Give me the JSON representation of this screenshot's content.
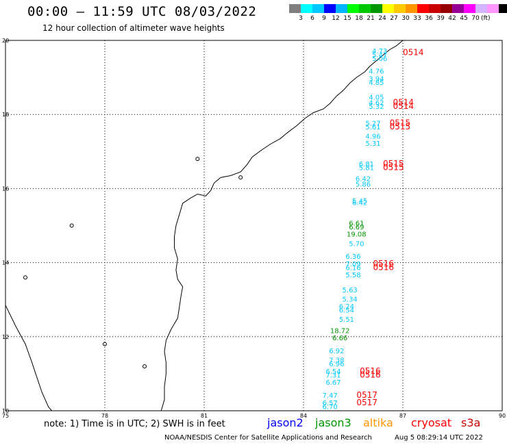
{
  "header": {
    "title": "00:00 – 11:59 UTC 08/03/2022",
    "subtitle": "12 hour collection of altimeter wave heights"
  },
  "colorbar": {
    "colors": [
      "#7f7f7f",
      "#00ffff",
      "#00c8ff",
      "#0000ff",
      "#00b4ff",
      "#00ff00",
      "#00c800",
      "#009600",
      "#ffff00",
      "#ffc800",
      "#ff9600",
      "#ff0000",
      "#c80000",
      "#960000",
      "#960096",
      "#ff00ff",
      "#d2b4ff",
      "#ff96ff",
      "#000000"
    ],
    "labels": [
      "3",
      "6",
      "9",
      "12",
      "15",
      "18",
      "21",
      "24",
      "27",
      "30",
      "33",
      "36",
      "39",
      "42",
      "45",
      "70"
    ],
    "unit": "(ft)"
  },
  "map": {
    "lon_range": [
      75,
      90
    ],
    "lat_range": [
      10,
      20
    ],
    "lon_ticks": [
      "75",
      "78",
      "81",
      "84",
      "87",
      "90"
    ],
    "lat_ticks": [
      "10",
      "12",
      "14",
      "16",
      "18",
      "20"
    ],
    "grid": "dotted",
    "observations": [
      {
        "lon": 86.3,
        "lat": 19.65,
        "value": "4.73",
        "color": "#00c8ff"
      },
      {
        "lon": 86.3,
        "lat": 19.55,
        "value": "5.47",
        "color": "#00c8ff"
      },
      {
        "lon": 86.3,
        "lat": 19.45,
        "value": "5.06",
        "color": "#00c8ff"
      },
      {
        "lon": 86.2,
        "lat": 19.1,
        "value": "4.76",
        "color": "#00c8ff"
      },
      {
        "lon": 86.2,
        "lat": 18.9,
        "value": "3.94",
        "color": "#00c8ff"
      },
      {
        "lon": 86.2,
        "lat": 18.8,
        "value": "4.85",
        "color": "#00c8ff"
      },
      {
        "lon": 86.2,
        "lat": 18.4,
        "value": "4.05",
        "color": "#00c8ff"
      },
      {
        "lon": 86.2,
        "lat": 18.25,
        "value": "4.62",
        "color": "#00c8ff"
      },
      {
        "lon": 86.2,
        "lat": 18.15,
        "value": "5.32",
        "color": "#00c8ff"
      },
      {
        "lon": 86.1,
        "lat": 17.7,
        "value": "5.27",
        "color": "#00c8ff"
      },
      {
        "lon": 86.1,
        "lat": 17.6,
        "value": "5.61",
        "color": "#00c8ff"
      },
      {
        "lon": 86.1,
        "lat": 17.35,
        "value": "4.96",
        "color": "#00c8ff"
      },
      {
        "lon": 86.1,
        "lat": 17.15,
        "value": "5.31",
        "color": "#00c8ff"
      },
      {
        "lon": 85.9,
        "lat": 16.6,
        "value": "6.81",
        "color": "#00c8ff"
      },
      {
        "lon": 85.9,
        "lat": 16.5,
        "value": "5.81",
        "color": "#00c8ff"
      },
      {
        "lon": 85.8,
        "lat": 16.2,
        "value": "6.42",
        "color": "#00c8ff"
      },
      {
        "lon": 85.8,
        "lat": 16.05,
        "value": "5.86",
        "color": "#00c8ff"
      },
      {
        "lon": 85.7,
        "lat": 15.6,
        "value": "5.45",
        "color": "#00c8ff"
      },
      {
        "lon": 85.7,
        "lat": 15.55,
        "value": "6.42",
        "color": "#00c8ff"
      },
      {
        "lon": 85.6,
        "lat": 15.0,
        "value": "6.61",
        "color": "#009600"
      },
      {
        "lon": 85.6,
        "lat": 14.9,
        "value": "6.69",
        "color": "#009600"
      },
      {
        "lon": 85.6,
        "lat": 14.7,
        "value": "19.08",
        "color": "#009600"
      },
      {
        "lon": 85.6,
        "lat": 14.45,
        "value": "5.70",
        "color": "#00c8ff"
      },
      {
        "lon": 85.5,
        "lat": 14.1,
        "value": "6.36",
        "color": "#00c8ff"
      },
      {
        "lon": 85.5,
        "lat": 13.9,
        "value": "7.09",
        "color": "#00c8ff"
      },
      {
        "lon": 85.5,
        "lat": 13.8,
        "value": "6.16",
        "color": "#00c8ff"
      },
      {
        "lon": 85.5,
        "lat": 13.6,
        "value": "5.58",
        "color": "#00c8ff"
      },
      {
        "lon": 85.4,
        "lat": 13.2,
        "value": "5.63",
        "color": "#00c8ff"
      },
      {
        "lon": 85.4,
        "lat": 12.95,
        "value": "5.34",
        "color": "#00c8ff"
      },
      {
        "lon": 85.3,
        "lat": 12.75,
        "value": "6.24",
        "color": "#00c8ff"
      },
      {
        "lon": 85.3,
        "lat": 12.65,
        "value": "6.54",
        "color": "#00c8ff"
      },
      {
        "lon": 85.3,
        "lat": 12.4,
        "value": "5.51",
        "color": "#00c8ff"
      },
      {
        "lon": 85.1,
        "lat": 12.1,
        "value": "18.72",
        "color": "#009600"
      },
      {
        "lon": 85.1,
        "lat": 11.9,
        "value": "6.66",
        "color": "#009600"
      },
      {
        "lon": 85.0,
        "lat": 11.55,
        "value": "6.92",
        "color": "#00c8ff"
      },
      {
        "lon": 85.0,
        "lat": 11.3,
        "value": "7.38",
        "color": "#00c8ff"
      },
      {
        "lon": 85.0,
        "lat": 11.2,
        "value": "6.96",
        "color": "#00c8ff"
      },
      {
        "lon": 84.9,
        "lat": 11.0,
        "value": "6.54",
        "color": "#00c8ff"
      },
      {
        "lon": 84.9,
        "lat": 10.9,
        "value": "7.31",
        "color": "#00c8ff"
      },
      {
        "lon": 84.9,
        "lat": 10.7,
        "value": "6.67",
        "color": "#00c8ff"
      },
      {
        "lon": 84.8,
        "lat": 10.35,
        "value": "7.47",
        "color": "#00c8ff"
      },
      {
        "lon": 84.8,
        "lat": 10.15,
        "value": "6.57",
        "color": "#00c8ff"
      },
      {
        "lon": 84.8,
        "lat": 10.05,
        "value": "6.70",
        "color": "#00c8ff"
      }
    ],
    "time_labels": [
      {
        "lon": 87.0,
        "lat": 19.6,
        "text": "0514",
        "color": "#ff0000"
      },
      {
        "lon": 86.7,
        "lat": 18.25,
        "text": "0514",
        "color": "#ff0000"
      },
      {
        "lon": 86.7,
        "lat": 18.15,
        "text": "0514",
        "color": "#ff0000"
      },
      {
        "lon": 86.6,
        "lat": 17.7,
        "text": "0515",
        "color": "#ff0000"
      },
      {
        "lon": 86.6,
        "lat": 17.6,
        "text": "0515",
        "color": "#ff0000"
      },
      {
        "lon": 86.4,
        "lat": 16.6,
        "text": "0515",
        "color": "#ff0000"
      },
      {
        "lon": 86.4,
        "lat": 16.5,
        "text": "0515",
        "color": "#ff0000"
      },
      {
        "lon": 86.1,
        "lat": 13.9,
        "text": "0516",
        "color": "#ff0000"
      },
      {
        "lon": 86.1,
        "lat": 13.8,
        "text": "0516",
        "color": "#ff0000"
      },
      {
        "lon": 85.7,
        "lat": 11.0,
        "text": "0516",
        "color": "#ff0000"
      },
      {
        "lon": 85.7,
        "lat": 10.9,
        "text": "0516",
        "color": "#ff0000"
      },
      {
        "lon": 85.6,
        "lat": 10.35,
        "text": "0517",
        "color": "#ff0000"
      },
      {
        "lon": 85.6,
        "lat": 10.15,
        "text": "0517",
        "color": "#ff0000"
      }
    ]
  },
  "legend": {
    "note": "note: 1) Time is in UTC; 2) SWH is in feet",
    "satellites": [
      {
        "name": "jason2",
        "color": "#0000ff"
      },
      {
        "name": "jason3",
        "color": "#009600"
      },
      {
        "name": "altika",
        "color": "#ff9600"
      },
      {
        "name": "cryosat",
        "color": "#ff0000"
      },
      {
        "name": "s3a",
        "color": "#c80000"
      }
    ]
  },
  "footer": {
    "credit": "NOAA/NESDIS Center for Satellite Applications and Research",
    "timestamp": "Aug  5 08:29:14 UTC 2022"
  }
}
